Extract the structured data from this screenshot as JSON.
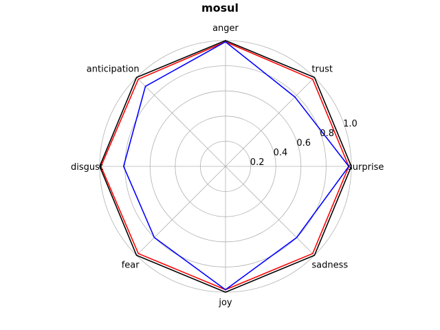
{
  "chart_data": {
    "type": "radar",
    "title": "mosul",
    "categories": [
      "surprise",
      "trust",
      "anger",
      "anticipation",
      "disgust",
      "fear",
      "joy",
      "sadness"
    ],
    "rlim": [
      0,
      1.0
    ],
    "rticks": [
      "0.2",
      "0.4",
      "0.6",
      "0.8",
      "1.0"
    ],
    "rtick_values": [
      0.2,
      0.4,
      0.6,
      0.8,
      1.0
    ],
    "grid": true,
    "series": [
      {
        "color": "#000000",
        "values": [
          1.0,
          1.0,
          1.0,
          1.0,
          1.0,
          1.0,
          1.0,
          1.0
        ]
      },
      {
        "color": "#ff0000",
        "values": [
          0.98,
          0.98,
          0.99,
          0.98,
          0.99,
          0.98,
          0.98,
          0.98
        ]
      },
      {
        "color": "#0000ff",
        "values": [
          0.98,
          0.78,
          0.99,
          0.9,
          0.81,
          0.8,
          0.98,
          0.8
        ]
      }
    ]
  }
}
